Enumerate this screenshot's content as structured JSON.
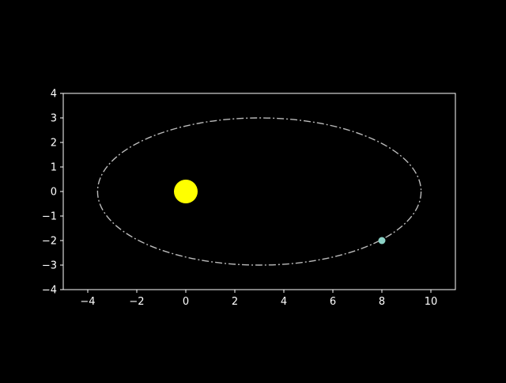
{
  "chart_data": {
    "type": "scatter",
    "title": "",
    "xlabel": "",
    "ylabel": "",
    "xlim": [
      -5,
      11
    ],
    "ylim": [
      -4,
      4
    ],
    "x_ticks": [
      -4,
      -2,
      0,
      2,
      4,
      6,
      8,
      10
    ],
    "y_ticks": [
      -4,
      -3,
      -2,
      -1,
      0,
      1,
      2,
      3,
      4
    ],
    "x_tick_labels": [
      "−4",
      "−2",
      "0",
      "2",
      "4",
      "6",
      "8",
      "10"
    ],
    "y_tick_labels": [
      "−4",
      "−3",
      "−2",
      "−1",
      "0",
      "1",
      "2",
      "3",
      "4"
    ],
    "grid": false,
    "legend": "none",
    "orbit": {
      "center": [
        3,
        0
      ],
      "semi_major": 6.6,
      "semi_minor": 3.0,
      "color": "#bbbbbb",
      "style": "dashdot"
    },
    "points": [
      {
        "x": 0,
        "y": 0,
        "color": "#ffff00",
        "size": "large"
      },
      {
        "x": 8,
        "y": -2,
        "color": "#8dd3c7",
        "size": "small"
      }
    ],
    "background": "#000000",
    "axis_color": "#ffffff"
  }
}
